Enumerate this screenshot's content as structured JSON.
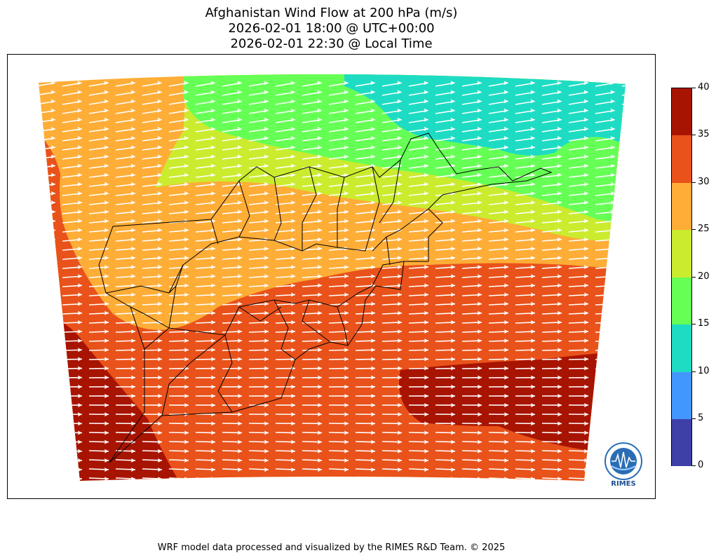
{
  "title": {
    "line1": "Afghanistan Wind Flow at 200 hPa (m/s)",
    "line2": "2026-02-01 18:00 @ UTC+00:00",
    "line3": "2026-02-01 22:30 @ Local Time"
  },
  "colorbar": {
    "ticks": [
      "0",
      "5",
      "10",
      "15",
      "20",
      "25",
      "30",
      "35",
      "40"
    ],
    "colors": [
      "#3f3fa8",
      "#4496ff",
      "#1edcc3",
      "#66ff55",
      "#cbeb2f",
      "#fead37",
      "#e9521a",
      "#a81402"
    ]
  },
  "logo": {
    "text": "RIMES"
  },
  "footer": "WRF model data processed and visualized by the RIMES R&D Team. © 2025"
}
